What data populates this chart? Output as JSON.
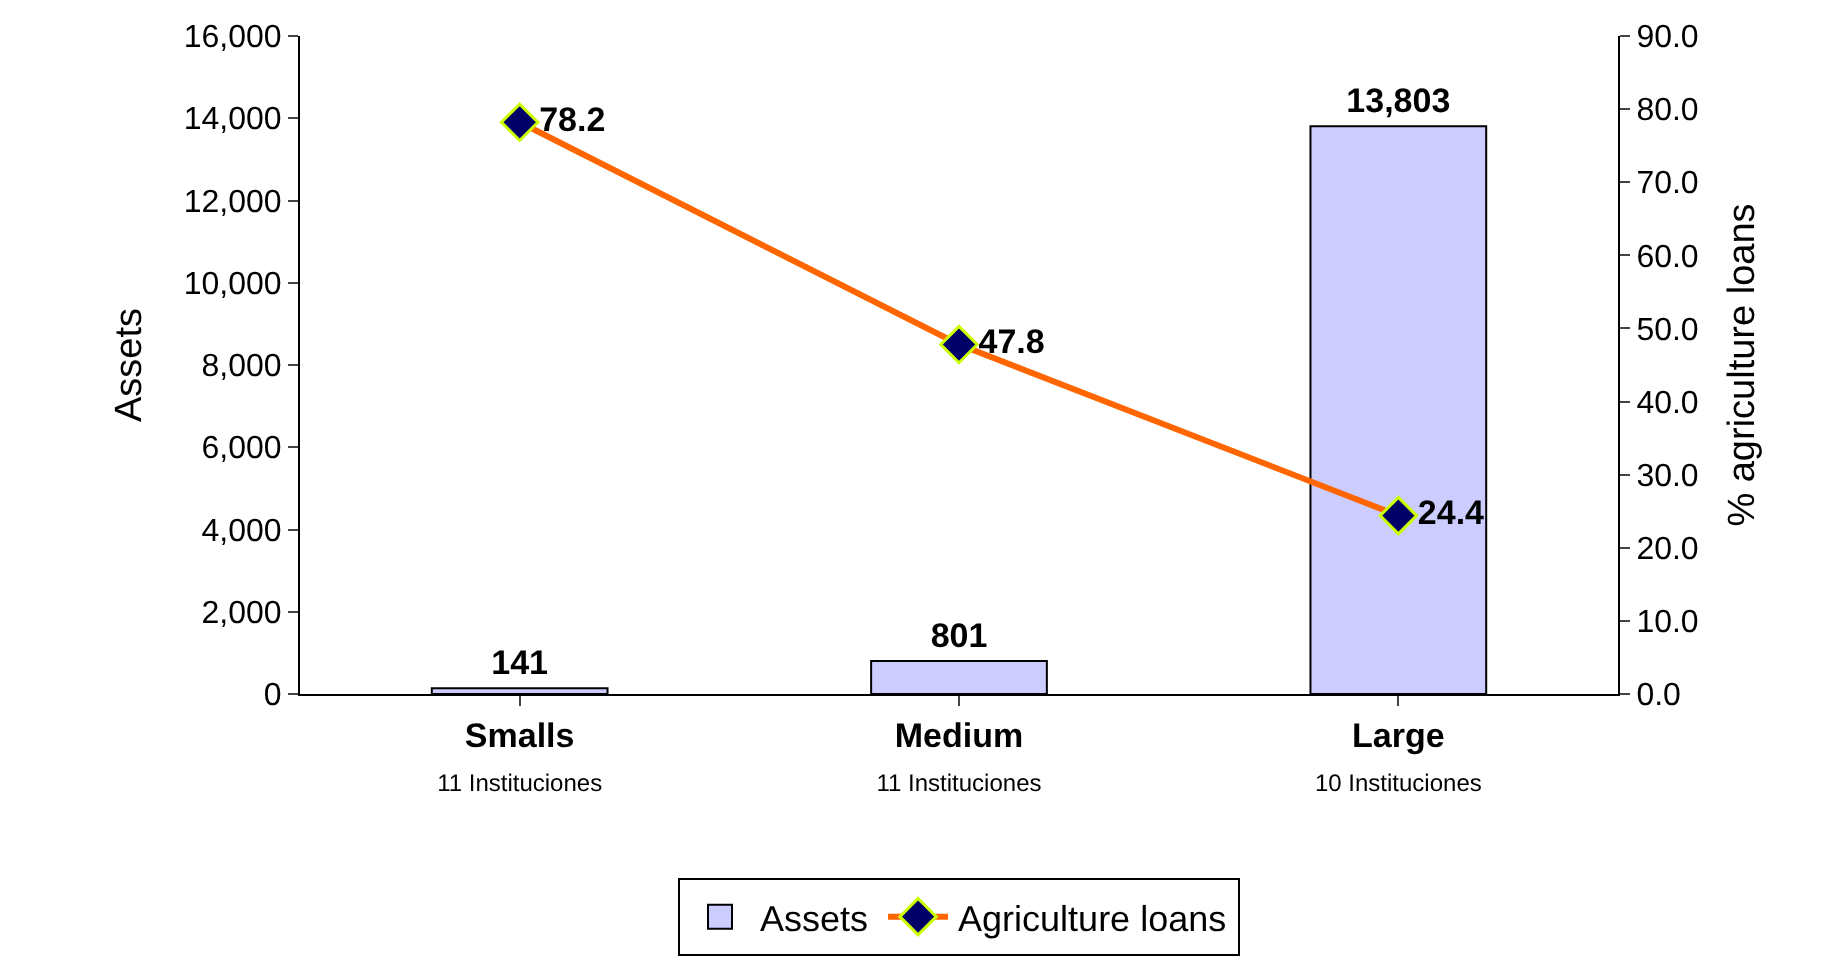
{
  "chart_data": {
    "type": "bar",
    "ylabel": "Assets",
    "y2label": "% agriculture loans",
    "categories": [
      "Smalls\n11 Instituciones",
      "Medium\n11 Instituciones",
      "Large\n10 Instituciones"
    ],
    "series": [
      {
        "name": "Assets",
        "color": "#ccccff",
        "values": [
          141,
          801,
          13803
        ],
        "value_labels": [
          "141",
          "801",
          "13,803"
        ]
      },
      {
        "name": "Agriculture loans",
        "type": "line",
        "axis": "y2",
        "color": "#ff6600",
        "marker": "diamond",
        "values": [
          78.2,
          47.8,
          24.4
        ],
        "value_labels": [
          "78.2",
          "47.8",
          "24.4"
        ]
      }
    ],
    "ylim": [
      0,
      16000
    ],
    "yticks": [
      {
        "value": 0,
        "label": "0"
      },
      {
        "value": 2000,
        "label": "2,000"
      },
      {
        "value": 4000,
        "label": "4,000"
      },
      {
        "value": 6000,
        "label": "6,000"
      },
      {
        "value": 8000,
        "label": "8,000"
      },
      {
        "value": 10000,
        "label": "10,000"
      },
      {
        "value": 12000,
        "label": "12,000"
      },
      {
        "value": 14000,
        "label": "14,000"
      },
      {
        "value": 16000,
        "label": "16,000"
      }
    ],
    "y2lim": [
      0,
      90
    ],
    "y2ticks": [
      {
        "value": 0,
        "label": "0.0"
      },
      {
        "value": 10,
        "label": "10.0"
      },
      {
        "value": 20,
        "label": "20.0"
      },
      {
        "value": 30,
        "label": "30.0"
      },
      {
        "value": 40,
        "label": "40.0"
      },
      {
        "value": 50,
        "label": "50.0"
      },
      {
        "value": 60,
        "label": "60.0"
      },
      {
        "value": 70,
        "label": "70.0"
      },
      {
        "value": 80,
        "label": "80.0"
      },
      {
        "value": 90,
        "label": "90.0"
      }
    ],
    "legend": "bottom"
  }
}
